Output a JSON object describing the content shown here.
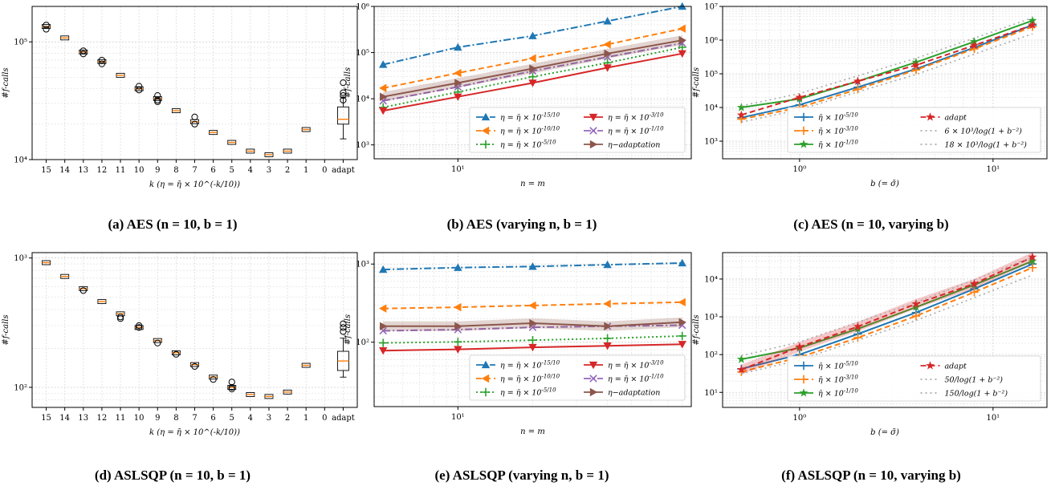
{
  "chart_data": [
    {
      "id": "a",
      "type": "box",
      "caption": "(a) AES (n = 10, b = 1)",
      "ylabel": "#f-calls",
      "xlabel": "k (η = η̄ × 10^(-k/10))",
      "yscale": "log",
      "ylim": [
        10000,
        200000
      ],
      "yticks": [
        {
          "v": 10000,
          "label": "10⁴"
        },
        {
          "v": 100000,
          "label": "10⁵"
        }
      ],
      "categories": [
        "15",
        "14",
        "13",
        "12",
        "11",
        "10",
        "9",
        "8",
        "7",
        "6",
        "5",
        "4",
        "3",
        "2",
        "1",
        "0",
        "adapt"
      ],
      "medians": [
        135000,
        108000,
        82000,
        68000,
        52000,
        40000,
        33000,
        26000,
        21000,
        17000,
        14000,
        11800,
        11000,
        11800,
        18000,
        null,
        22000
      ],
      "outliers": [
        [
          139000,
          128000
        ],
        [],
        [
          84000,
          79000
        ],
        [
          70000,
          65000
        ],
        [],
        [
          42000,
          39000
        ],
        [
          35000,
          32000,
          31000
        ],
        [],
        [
          23000,
          20000
        ],
        [],
        [],
        [],
        [],
        [],
        [],
        [],
        [
          45000,
          37000,
          35000,
          32000
        ]
      ],
      "adapt_box": {
        "q1": 20000,
        "q3": 28000,
        "lo": 15000,
        "hi": 34000
      }
    },
    {
      "id": "b",
      "type": "line",
      "caption": "(b) AES (varying n, b = 1)",
      "ylabel": "#f-calls",
      "xlabel": "n = m",
      "xscale": "log",
      "yscale": "log",
      "xlim": [
        4.6,
        87
      ],
      "ylim": [
        500,
        1000000
      ],
      "xticks": [
        {
          "v": 10,
          "label": "10¹"
        }
      ],
      "yticks": [
        {
          "v": 1000,
          "label": "10³"
        },
        {
          "v": 10000,
          "label": "10⁴"
        },
        {
          "v": 100000,
          "label": "10⁵"
        },
        {
          "v": 1000000,
          "label": "10⁶"
        }
      ],
      "x": [
        5,
        10,
        20,
        40,
        80
      ],
      "series": [
        {
          "name": "η = η̄ × 10^(-15/10)",
          "color": "#1f77b4",
          "dash": "9,3,2,3",
          "marker": "tri-up",
          "values": [
            55000,
            130000,
            230000,
            480000,
            1000000
          ]
        },
        {
          "name": "η = η̄ × 10^(-10/10)",
          "color": "#ff7f0e",
          "dash": "7,4",
          "marker": "tri-left",
          "values": [
            17000,
            36000,
            75000,
            150000,
            330000
          ]
        },
        {
          "name": "η = η̄ × 10^(-5/10)",
          "color": "#2ca02c",
          "dash": "2,3",
          "marker": "plus",
          "values": [
            6500,
            14000,
            30000,
            60000,
            130000
          ]
        },
        {
          "name": "η = η̄ × 10^(-3/10)",
          "color": "#d62728",
          "dash": "",
          "marker": "tri-down",
          "values": [
            5500,
            11000,
            22000,
            47000,
            95000
          ]
        },
        {
          "name": "η = η̄ × 10^(-1/10)",
          "color": "#9467bd",
          "dash": "9,3,2,3",
          "marker": "x",
          "values": [
            9000,
            18000,
            40000,
            80000,
            160000
          ]
        },
        {
          "name": "η−adaptation",
          "color": "#8c564b",
          "dash": "",
          "marker": "tri-right",
          "band": true,
          "values": [
            11000,
            22000,
            45000,
            95000,
            185000
          ]
        }
      ]
    },
    {
      "id": "c",
      "type": "line",
      "caption": "(c) AES (n = 10, varying b)",
      "ylabel": "#f-calls",
      "xlabel": "b (= σ̄)",
      "xscale": "log",
      "yscale": "log",
      "xlim": [
        0.4,
        19
      ],
      "ylim": [
        300,
        10000000
      ],
      "xticks": [
        {
          "v": 1,
          "label": "10⁰"
        },
        {
          "v": 10,
          "label": "10¹"
        }
      ],
      "yticks": [
        {
          "v": 1000,
          "label": "10³"
        },
        {
          "v": 10000,
          "label": "10⁴"
        },
        {
          "v": 100000,
          "label": "10⁵"
        },
        {
          "v": 1000000,
          "label": "10⁶"
        },
        {
          "v": 10000000,
          "label": "10⁷"
        }
      ],
      "x": [
        0.5,
        1,
        2,
        4,
        8,
        16
      ],
      "series": [
        {
          "name": "η̄ × 10^(-5/10)",
          "color": "#1f77b4",
          "dash": "",
          "marker": "plus",
          "values": [
            5000,
            12000,
            40000,
            140000,
            600000,
            2800000
          ]
        },
        {
          "name": "η̄ × 10^(-3/10)",
          "color": "#ff7f0e",
          "dash": "7,4",
          "marker": "plus",
          "values": [
            4500,
            10000,
            35000,
            130000,
            550000,
            2500000
          ]
        },
        {
          "name": "η̄ × 10^(-1/10)",
          "color": "#2ca02c",
          "dash": "",
          "marker": "star",
          "values": [
            10000,
            18000,
            60000,
            220000,
            900000,
            3800000
          ]
        },
        {
          "name": "adapt",
          "color": "#d62728",
          "dash": "7,4",
          "marker": "star",
          "values": [
            6000,
            20000,
            60000,
            180000,
            700000,
            2800000
          ]
        },
        {
          "name": "6 × 10³/log(1 + b⁻²)",
          "color": "#aaaaaa",
          "dash": "2,4",
          "marker": "none",
          "values": [
            3700,
            8660,
            29000,
            96000,
            384000,
            1536000
          ]
        },
        {
          "name": "18 × 10³/log(1 + b⁻²)",
          "color": "#aaaaaa",
          "dash": "2,4",
          "marker": "none",
          "values": [
            11200,
            26000,
            87000,
            290000,
            1150000,
            4600000
          ]
        }
      ]
    },
    {
      "id": "d",
      "type": "box",
      "caption": "(d) ASLSQP (n = 10, b = 1)",
      "ylabel": "#f-calls",
      "xlabel": "k (η = η̄ × 10^(-k/10))",
      "yscale": "log",
      "ylim": [
        70,
        1100
      ],
      "yticks": [
        {
          "v": 100,
          "label": "10²"
        },
        {
          "v": 1000,
          "label": "10³"
        }
      ],
      "categories": [
        "15",
        "14",
        "13",
        "12",
        "11",
        "10",
        "9",
        "8",
        "7",
        "6",
        "5",
        "4",
        "3",
        "2",
        "1",
        "0",
        "adapt"
      ],
      "medians": [
        920,
        720,
        580,
        460,
        370,
        290,
        230,
        185,
        150,
        120,
        100,
        88,
        85,
        92,
        148,
        null,
        160
      ],
      "outliers": [
        [],
        [],
        [
          560
        ],
        [],
        [
          340,
          350
        ],
        [
          300,
          290
        ],
        [
          220
        ],
        [
          180
        ],
        [
          145
        ],
        [
          115
        ],
        [
          110,
          100,
          97
        ],
        [],
        [],
        [],
        [],
        [],
        [
          310,
          290,
          270
        ]
      ],
      "adapt_box": {
        "q1": 135,
        "q3": 190,
        "lo": 120,
        "hi": 240
      }
    },
    {
      "id": "e",
      "type": "line",
      "caption": "(e) ASLSQP (varying n, b = 1)",
      "ylabel": "#f-calls",
      "xlabel": "n = m",
      "xscale": "log",
      "yscale": "log",
      "xlim": [
        4.6,
        87
      ],
      "ylim": [
        15,
        1400
      ],
      "xticks": [
        {
          "v": 10,
          "label": "10¹"
        }
      ],
      "yticks": [
        {
          "v": 100,
          "label": "10²"
        },
        {
          "v": 1000,
          "label": "10³"
        }
      ],
      "x": [
        5,
        10,
        20,
        40,
        80
      ],
      "series": [
        {
          "name": "η = η̄ × 10^(-15/10)",
          "color": "#1f77b4",
          "dash": "9,3,2,3",
          "marker": "tri-up",
          "values": [
            850,
            900,
            930,
            980,
            1030
          ]
        },
        {
          "name": "η = η̄ × 10^(-10/10)",
          "color": "#ff7f0e",
          "dash": "7,4",
          "marker": "tri-left",
          "values": [
            270,
            280,
            295,
            310,
            325
          ]
        },
        {
          "name": "η = η̄ × 10^(-5/10)",
          "color": "#2ca02c",
          "dash": "2,3",
          "marker": "plus",
          "values": [
            98,
            101,
            106,
            112,
            120
          ]
        },
        {
          "name": "η = η̄ × 10^(-3/10)",
          "color": "#d62728",
          "dash": "",
          "marker": "tri-down",
          "values": [
            78,
            81,
            86,
            90,
            94
          ]
        },
        {
          "name": "η = η̄ × 10^(-1/10)",
          "color": "#9467bd",
          "dash": "9,3,2,3",
          "marker": "x",
          "values": [
            140,
            145,
            155,
            160,
            165
          ]
        },
        {
          "name": "η−adaptation",
          "color": "#8c564b",
          "dash": "",
          "marker": "tri-right",
          "band": true,
          "values": [
            160,
            160,
            175,
            160,
            180
          ]
        }
      ]
    },
    {
      "id": "f",
      "type": "line",
      "caption": "(f) ASLSQP (n = 10, varying b)",
      "ylabel": "#f-calls",
      "xlabel": "b (= σ̄)",
      "xscale": "log",
      "yscale": "log",
      "xlim": [
        0.4,
        19
      ],
      "ylim": [
        4,
        50000
      ],
      "xticks": [
        {
          "v": 1,
          "label": "10⁰"
        },
        {
          "v": 10,
          "label": "10¹"
        }
      ],
      "yticks": [
        {
          "v": 10,
          "label": "10¹"
        },
        {
          "v": 100,
          "label": "10²"
        },
        {
          "v": 1000,
          "label": "10³"
        },
        {
          "v": 10000,
          "label": "10⁴"
        }
      ],
      "x": [
        0.5,
        1,
        2,
        4,
        8,
        16
      ],
      "series": [
        {
          "name": "η̄ × 10^(-5/10)",
          "color": "#1f77b4",
          "dash": "",
          "marker": "plus",
          "values": [
            42,
            100,
            350,
            1300,
            5500,
            25000
          ]
        },
        {
          "name": "η̄ × 10^(-3/10)",
          "color": "#ff7f0e",
          "dash": "7,4",
          "marker": "plus",
          "values": [
            35,
            85,
            280,
            1050,
            4500,
            20000
          ]
        },
        {
          "name": "η̄ × 10^(-1/10)",
          "color": "#2ca02c",
          "dash": "",
          "marker": "star",
          "values": [
            75,
            150,
            480,
            1800,
            7000,
            30000
          ]
        },
        {
          "name": "adapt",
          "color": "#d62728",
          "dash": "7,4",
          "marker": "star",
          "band": true,
          "values": [
            40,
            160,
            550,
            2200,
            7500,
            38000
          ]
        },
        {
          "name": "50/log(1 + b⁻²)",
          "color": "#aaaaaa",
          "dash": "2,4",
          "marker": "none",
          "values": [
            31,
            72,
            240,
            800,
            3200,
            12800
          ]
        },
        {
          "name": "150/log(1 + b⁻²)",
          "color": "#aaaaaa",
          "dash": "2,4",
          "marker": "none",
          "values": [
            93,
            216,
            720,
            2400,
            9600,
            38400
          ]
        }
      ]
    }
  ]
}
